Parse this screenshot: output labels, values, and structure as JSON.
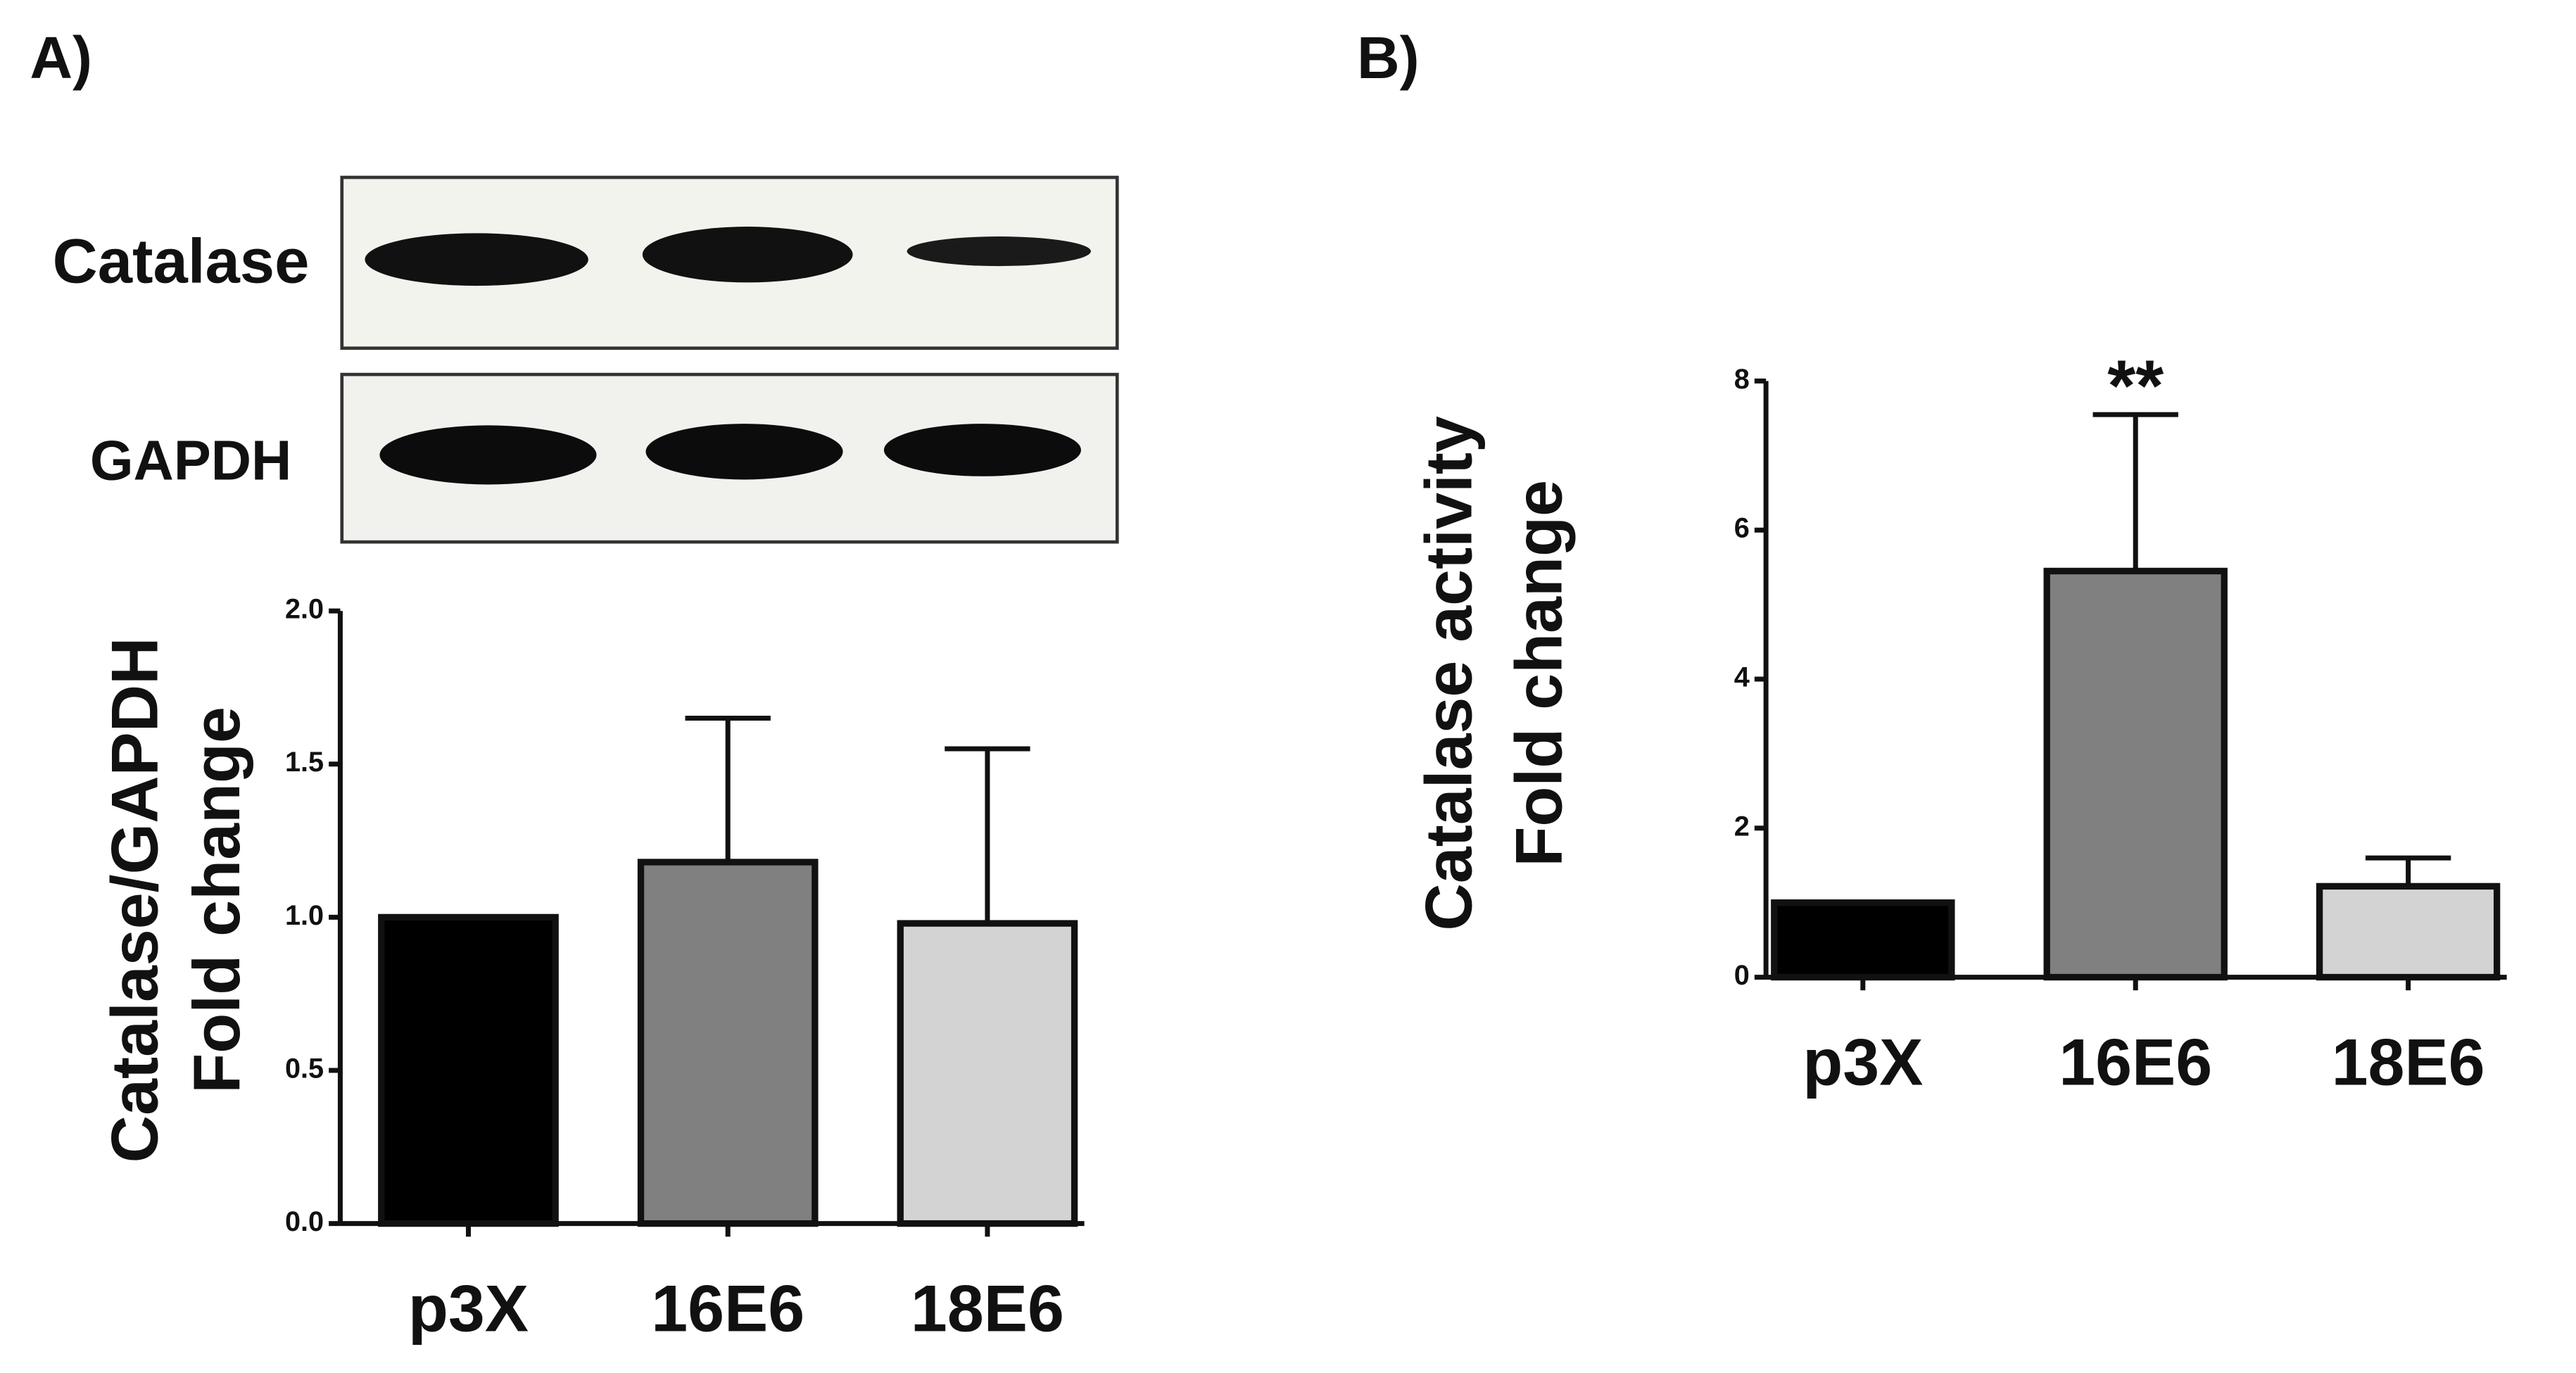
{
  "panels": [
    {
      "label": "A)"
    },
    {
      "label": "B)"
    }
  ],
  "blot": {
    "rows": [
      "Catalase",
      "GAPDH"
    ]
  },
  "chart_data": [
    {
      "type": "bar",
      "ylabel": [
        "Catalase/GAPDH",
        "Fold change"
      ],
      "categories": [
        "p3X",
        "16E6",
        "18E6"
      ],
      "values": [
        1.0,
        1.18,
        0.98
      ],
      "errors": [
        null,
        0.47,
        0.57
      ],
      "colors": [
        "#000000",
        "#808080",
        "#d3d3d3"
      ],
      "ylim": [
        0,
        2
      ],
      "yticks": [
        {
          "value": 0,
          "label": "0.0"
        },
        {
          "value": 0.5,
          "label": "0.5"
        },
        {
          "value": 1,
          "label": "1.0"
        },
        {
          "value": 1.5,
          "label": "1.5"
        },
        {
          "value": 2,
          "label": "2.0"
        }
      ]
    },
    {
      "type": "bar",
      "ylabel": [
        "Catalase activity",
        "Fold change"
      ],
      "categories": [
        "p3X",
        "16E6",
        "18E6"
      ],
      "values": [
        1.0,
        5.45,
        1.22
      ],
      "errors": [
        null,
        2.1,
        0.38
      ],
      "colors": [
        "#000000",
        "#808080",
        "#d3d3d3"
      ],
      "annotations": [
        {
          "category": 1,
          "text": "**"
        }
      ],
      "ylim": [
        0,
        8
      ],
      "yticks": [
        0,
        2,
        4,
        6,
        8
      ]
    }
  ]
}
